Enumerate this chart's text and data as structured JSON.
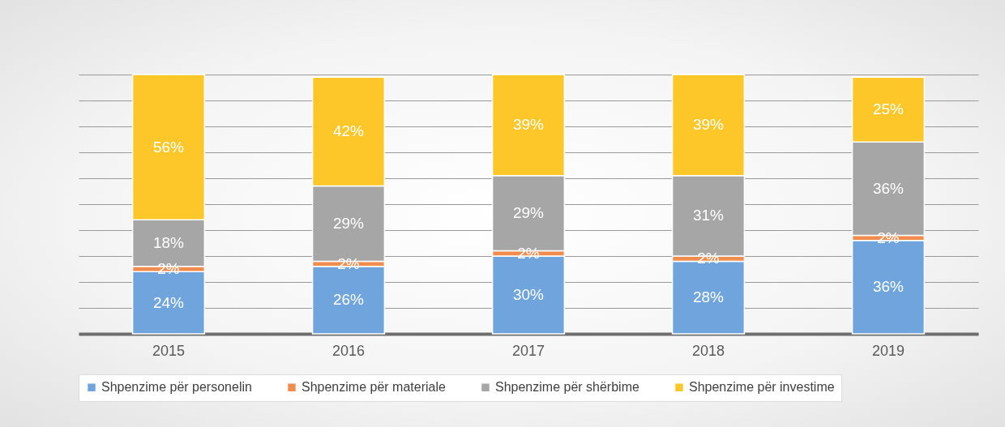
{
  "chart_data": {
    "type": "bar",
    "stacked": true,
    "categories": [
      "2015",
      "2016",
      "2017",
      "2018",
      "2019"
    ],
    "series": [
      {
        "name": "Shpenzime për personelin",
        "color": "#6fa5dc",
        "values": [
          24,
          26,
          30,
          28,
          36
        ],
        "value_labels": [
          "24%",
          "26%",
          "30%",
          "28%",
          "36%"
        ]
      },
      {
        "name": "Shpenzime për materiale",
        "color": "#f08c4e",
        "values": [
          2,
          2,
          2,
          2,
          2
        ],
        "value_labels": [
          "2%",
          "2%",
          "2%",
          "2%",
          "2%"
        ]
      },
      {
        "name": "Shpenzime për shërbime",
        "color": "#a6a6a6",
        "values": [
          18,
          29,
          29,
          31,
          36
        ],
        "value_labels": [
          "18%",
          "29%",
          "29%",
          "31%",
          "36%"
        ]
      },
      {
        "name": "Shpenzime për investime",
        "color": "#fdc72a",
        "values": [
          56,
          42,
          39,
          39,
          25
        ],
        "value_labels": [
          "56%",
          "42%",
          "39%",
          "39%",
          "25%"
        ]
      }
    ],
    "grid": "y",
    "tick_labels": "x",
    "legend": "bottom"
  }
}
